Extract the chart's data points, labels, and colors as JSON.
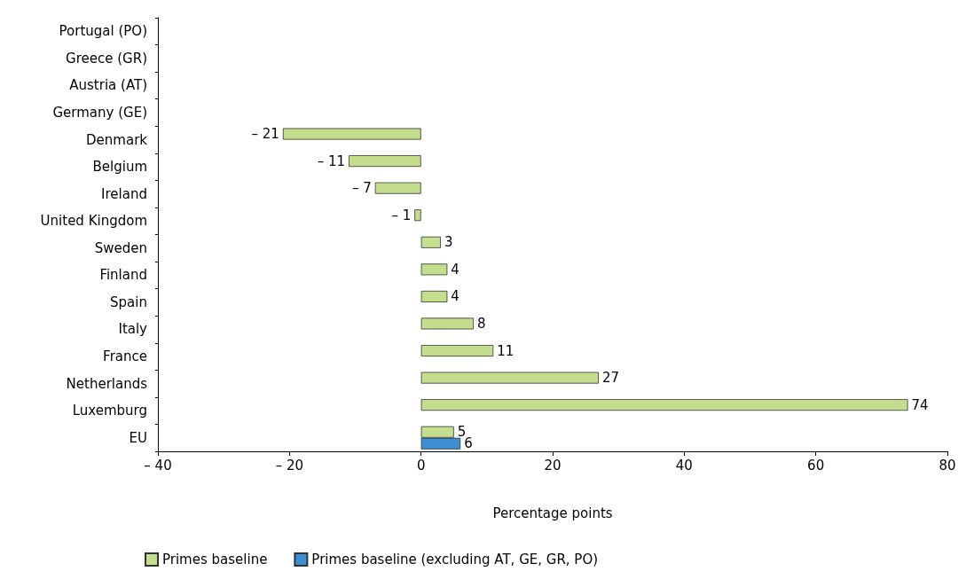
{
  "chart_data": {
    "type": "bar",
    "orientation": "horizontal",
    "categories": [
      "Portugal (PO)",
      "Greece (GR)",
      "Austria (AT)",
      "Germany (GE)",
      "Denmark",
      "Belgium",
      "Ireland",
      "United Kingdom",
      "Sweden",
      "Finland",
      "Spain",
      "Italy",
      "France",
      "Netherlands",
      "Luxemburg",
      "EU"
    ],
    "series": [
      {
        "name": "Primes baseline",
        "color": "#c5de8e",
        "values": [
          null,
          null,
          null,
          null,
          -21,
          -11,
          -7,
          -1,
          3,
          4,
          4,
          8,
          11,
          27,
          74,
          5
        ],
        "value_labels": [
          null,
          null,
          null,
          null,
          "– 21",
          "– 11",
          "– 7",
          "– 1",
          "3",
          "4",
          "4",
          "8",
          "11",
          "27",
          "74",
          "5"
        ]
      },
      {
        "name": "Primes baseline (excluding AT, GE, GR, PO)",
        "color": "#3b8fd2",
        "values": [
          null,
          null,
          null,
          null,
          null,
          null,
          null,
          null,
          null,
          null,
          null,
          null,
          null,
          null,
          null,
          6
        ],
        "value_labels": [
          null,
          null,
          null,
          null,
          null,
          null,
          null,
          null,
          null,
          null,
          null,
          null,
          null,
          null,
          null,
          "6"
        ]
      }
    ],
    "xlabel": "Percentage points",
    "xlim": [
      -40,
      80
    ],
    "xticks": [
      {
        "value": -40,
        "label": "– 40"
      },
      {
        "value": -20,
        "label": "– 20"
      },
      0,
      20,
      40,
      60,
      80
    ],
    "grid": false,
    "legend": "bottom left"
  }
}
